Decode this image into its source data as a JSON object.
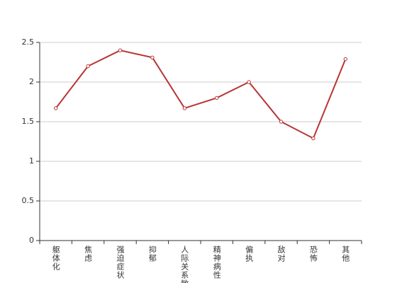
{
  "chart_data": {
    "type": "line",
    "categories": [
      "躯体化",
      "焦虑",
      "强迫症状",
      "抑郁",
      "人际关系敏感",
      "精神病性",
      "偏执",
      "敌对",
      "恐怖",
      "其他"
    ],
    "series": [
      {
        "color": "#b83535",
        "values": [
          1.67,
          2.2,
          2.4,
          2.31,
          1.67,
          1.8,
          2.0,
          1.5,
          1.29,
          2.29
        ]
      }
    ],
    "ylim": [
      0,
      2.5
    ],
    "yticks": [
      0,
      0.5,
      1,
      1.5,
      2,
      2.5
    ],
    "grid": true
  }
}
